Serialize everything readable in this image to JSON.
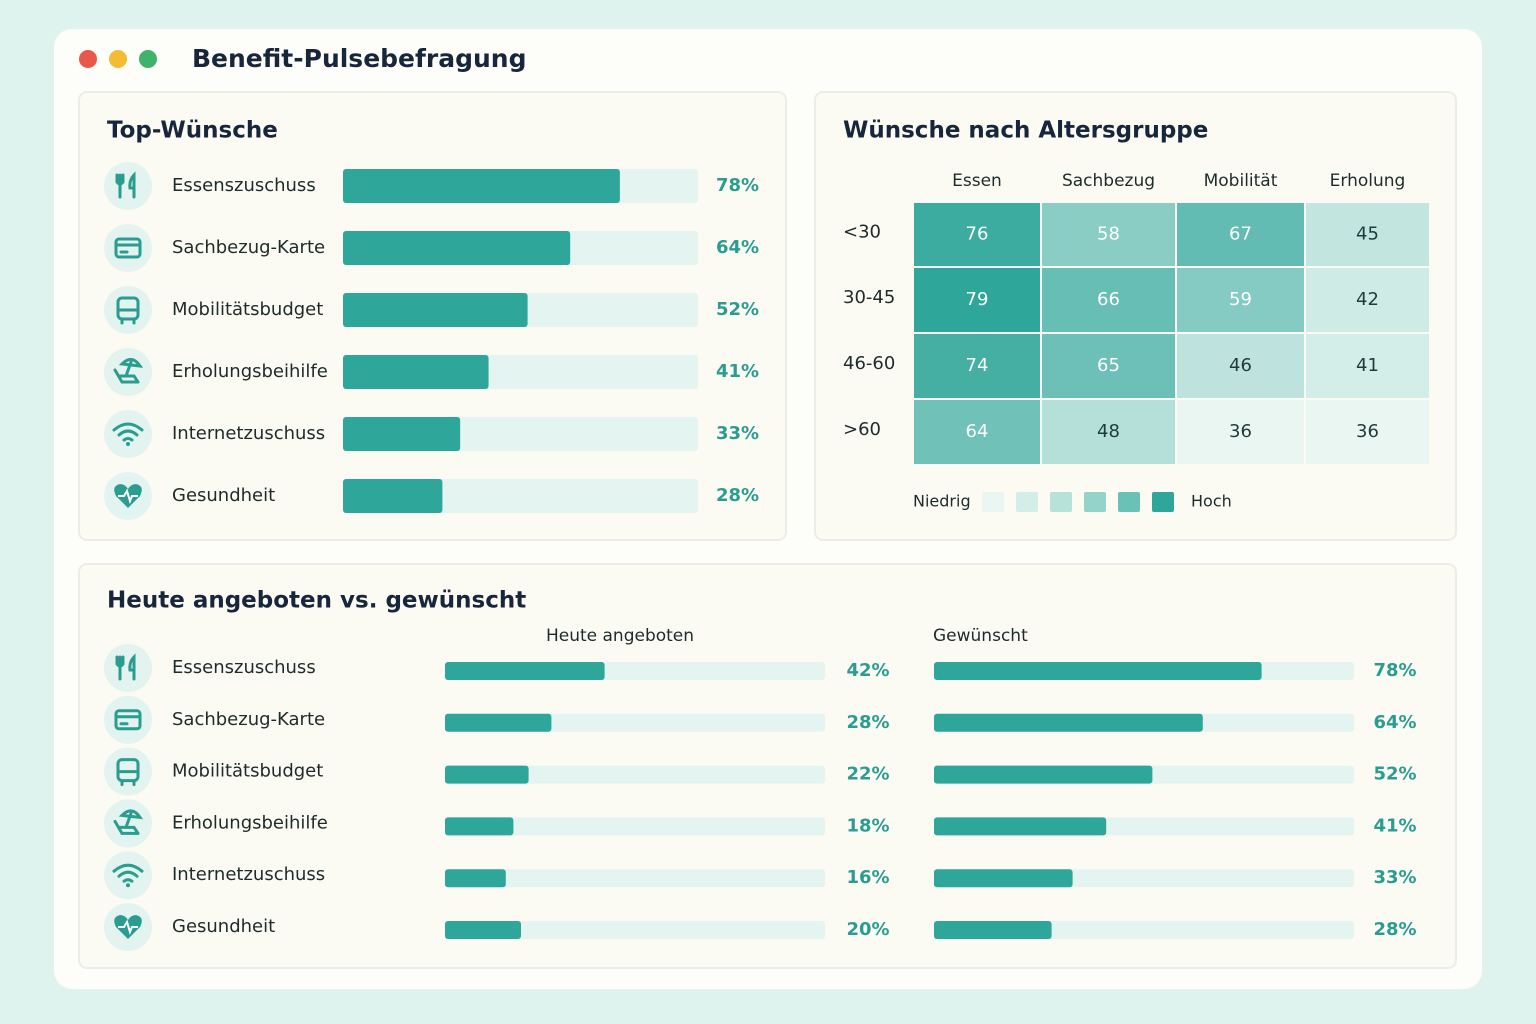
{
  "window_title": "Benefit-Pulsebefragung",
  "chart_data": [
    {
      "type": "bar",
      "orientation": "horizontal",
      "title": "Top-Wünsche",
      "categories": [
        "Essenszuschuss",
        "Sachbezug-Karte",
        "Mobilitätsbudget",
        "Erholungsbeihilfe",
        "Internetzuschuss",
        "Gesundheit"
      ],
      "values": [
        78,
        64,
        52,
        41,
        33,
        28
      ],
      "value_labels": [
        "78%",
        "64%",
        "52%",
        "41%",
        "33%",
        "28%"
      ],
      "color": "#2fa69a",
      "xlim": [
        0,
        100
      ]
    },
    {
      "type": "heatmap",
      "title": "Wünsche nach Altersgruppe",
      "x": [
        "Essen",
        "Sachbezug",
        "Mobilität",
        "Erholung"
      ],
      "y": [
        "<30",
        "30-45",
        "46-60",
        ">60"
      ],
      "values": [
        [
          76,
          58,
          67,
          45
        ],
        [
          79,
          66,
          59,
          42
        ],
        [
          74,
          65,
          46,
          41
        ],
        [
          64,
          48,
          36,
          36
        ]
      ],
      "legend": {
        "low": "Niedrig",
        "high": "Hoch",
        "colors": [
          "#e9f6f2",
          "#d3eee8",
          "#b6e2da",
          "#93d3c9",
          "#6ac2b6",
          "#2fa69a"
        ]
      }
    },
    {
      "type": "paired_bar",
      "title": "Heute angeboten vs. gewünscht",
      "categories": [
        "Essenszuschuss",
        "Sachbezug-Karte",
        "Mobilitätsbudget",
        "Erholungsbeihilfe",
        "Internetzuschuss",
        "Gesundheit"
      ],
      "series": [
        {
          "name": "Heute angeboten",
          "color": "#2fa69a",
          "values": [
            42,
            28,
            22,
            18,
            16,
            20
          ],
          "value_labels": [
            "42%",
            "28%",
            "22%",
            "18%",
            "16%",
            "20%"
          ]
        },
        {
          "name": "Gewünscht",
          "color": "#2fa69a",
          "values": [
            78,
            64,
            52,
            41,
            33,
            28
          ],
          "value_labels": [
            "78%",
            "64%",
            "52%",
            "41%",
            "33%",
            "28%"
          ]
        }
      ],
      "xlim": [
        0,
        100
      ]
    }
  ]
}
